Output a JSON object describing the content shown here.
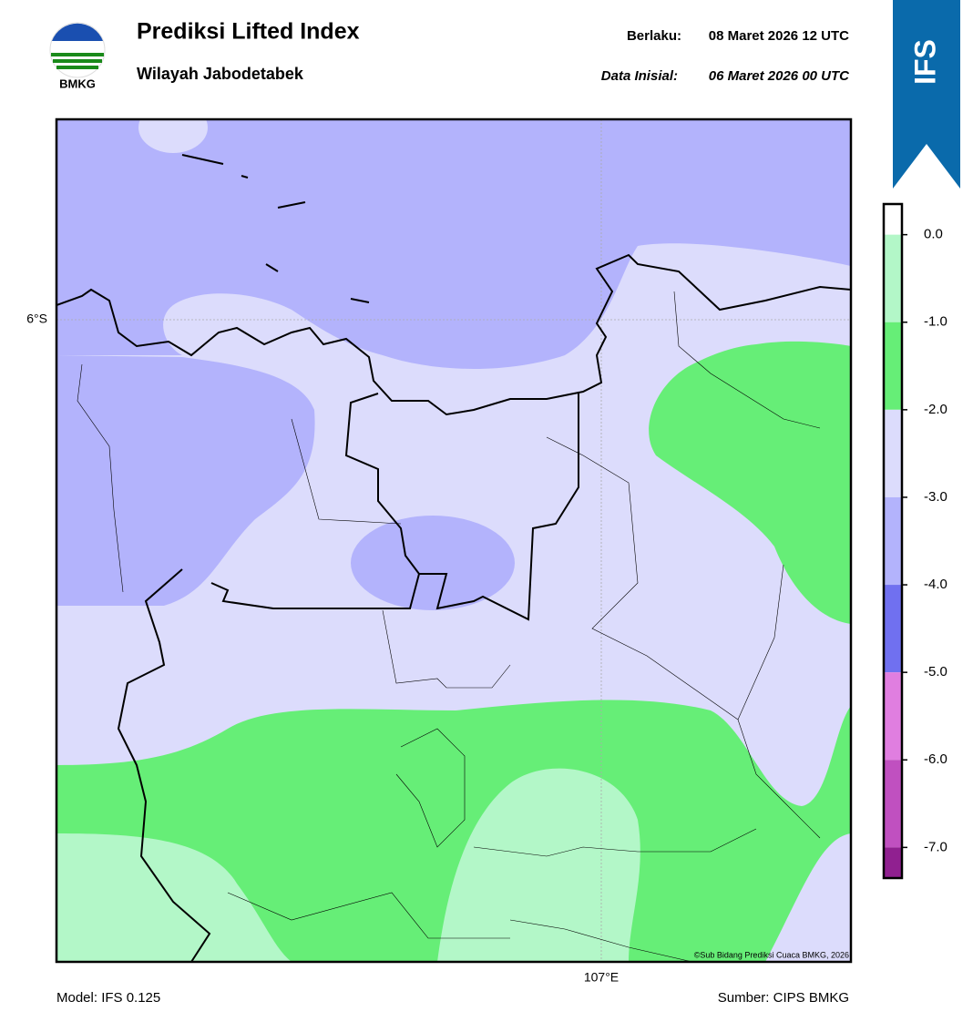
{
  "header": {
    "logo_text": "BMKG",
    "title": "Prediksi Lifted Index",
    "subtitle": "Wilayah Jabodetabek",
    "valid_label": "Berlaku:",
    "valid_time": "08 Maret 2026 12 UTC",
    "init_label": "Data Inisial:",
    "init_time": "06 Maret 2026 00 UTC",
    "badge": "IFS"
  },
  "map": {
    "lat_label": "6°S",
    "lon_label": "107°E",
    "credit": "©Sub Bidang Prediksi Cuaca BMKG, 2026"
  },
  "colorbar": {
    "vlim": [
      -7.35,
      0.35
    ],
    "ticks": [
      {
        "value": 0,
        "label": "0.0"
      },
      {
        "value": -1,
        "label": "-1.0"
      },
      {
        "value": -2,
        "label": "-2.0"
      },
      {
        "value": -3,
        "label": "-3.0"
      },
      {
        "value": -4,
        "label": "-4.0"
      },
      {
        "value": -5,
        "label": "-5.0"
      },
      {
        "value": -6,
        "label": "-6.0"
      },
      {
        "value": -7,
        "label": "-7.0"
      }
    ],
    "colors": [
      "#ffffff",
      "#b3f7c8",
      "#66ee77",
      "#dcdcfc",
      "#b3b3fc",
      "#7070f0",
      "#e07ee0",
      "#c050c0",
      "#902090"
    ]
  },
  "footer": {
    "model": "Model: IFS 0.125",
    "source": "Sumber: CIPS BMKG"
  }
}
